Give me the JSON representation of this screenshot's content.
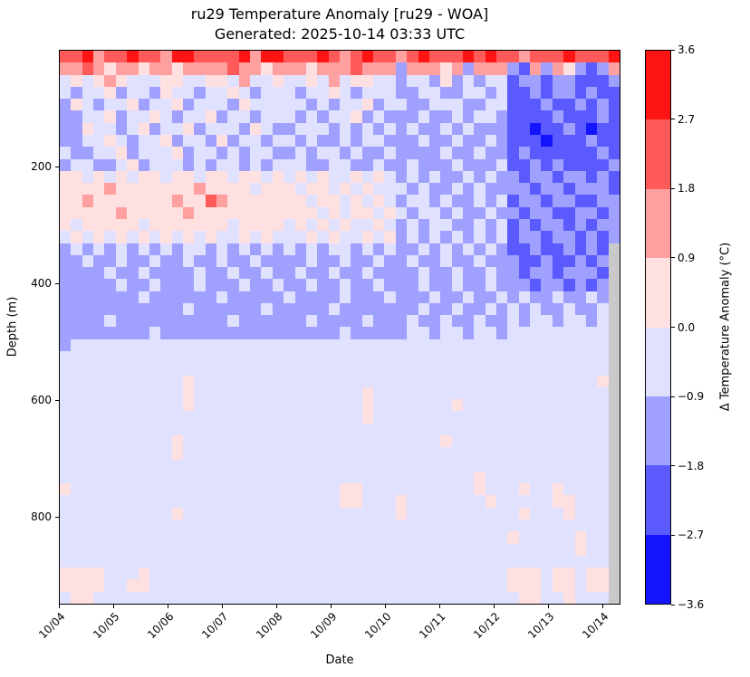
{
  "figure": {
    "background": "#ffffff"
  },
  "chart_data": {
    "type": "heatmap",
    "title": "ru29 Temperature Anomaly [ru29 - WOA]",
    "subtitle": "Generated: 2025-10-14 03:33 UTC",
    "xlabel": "Date",
    "ylabel": "Depth (m)",
    "colorbar_label": "Δ Temperature Anomaly (°C)",
    "x_tick_labels": [
      "10/04",
      "10/05",
      "10/06",
      "10/07",
      "10/08",
      "10/09",
      "10/10",
      "10/11",
      "10/12",
      "10/13",
      "10/14"
    ],
    "y_tick_labels": [
      "200",
      "400",
      "600",
      "800"
    ],
    "y_tick_values": [
      200,
      400,
      600,
      800
    ],
    "depth_range_m": [
      0,
      950
    ],
    "colorbar_tick_labels": [
      "3.6",
      "2.7",
      "1.8",
      "0.9",
      "0.0",
      "−0.9",
      "−1.8",
      "−2.7",
      "−3.6"
    ],
    "anomaly_levels_c": [
      -3.6,
      -2.7,
      -1.8,
      -0.9,
      0.0,
      0.9,
      1.8,
      2.7,
      3.6
    ],
    "band_colors": [
      "#1414ff",
      "#5a5aff",
      "#a0a0ff",
      "#e0e0ff",
      "#ffe0e0",
      "#ffa0a0",
      "#ff5a5a",
      "#ff1414"
    ],
    "band_value_ranges_c": [
      "-3.6 to -2.7",
      "-2.7 to -1.8",
      "-1.8 to -0.9",
      "-0.9 to 0.0",
      "0.0 to 0.9",
      "0.9 to 1.8",
      "1.8 to 2.7",
      "2.7 to 3.6"
    ],
    "nodata_color": "#c9c9c9",
    "grid_encoding": "rows[] top-to-bottom span depth 0→950 m; each character is one time cell left-to-right spanning 10/04→10/14; digits 0-7 index band_colors / band_value_ranges_c; 8 = no data",
    "rows": [
      "66756676657766667577666765676656766676766566676667",
      "55654554554555565545554555655525554525552152542125",
      "34345433344334435334334353443323324232331221221112",
      "32334233243323343233323343233322332233231121221211",
      "24323342334233324333332323342332233322331112112121",
      "22334233432334233233323233423222322323321111211121",
      "22433234233423332432233323232323223232221101121011",
      "22334323342332423323323223233222322322321110111211",
      "32233423334233232332232332322322223223221211111121",
      "23322342333232332323332233223223222322231121211112",
      "44343434434434434434343433434323232232322122122121",
      "44445444444454444344434434343332322323222212212221",
      "44544444445446544444443443434323323223231221221122",
      "44444544444544444444444343443432332322322122112212",
      "43444443444444434444343434334323233223231212212122",
      "34343434343434334343334343343423232323231221221212",
      "23232323232332323232323233232322323232321121121218",
      "22322322322322322322223223223223223223222112112128",
      "22223223222232232232232232232222322322322122122218",
      "22222322322232223223223223223222322322322212212128",
      "22222223222222322222322223222322232232232322322328",
      "22222222222322222232222232222222322322323232232238",
      "22223222222222232222223222232223223223223233233238",
      "22222222322222222222222223222223323323323333333338",
      "23333333333333333333333333333333333333333333333338",
      "33333333333333333333333333333333333333333333333338",
      "33333333333333333333333333333333333333333333333338",
      "33333333333433333333333333333333333333333333333348",
      "33333333333433333333333333343333333333333333333338",
      "33333333333433333333333333343333333433333333333338",
      "33333333333333333333333333343333333333333333333338",
      "33333333333333333333333333333333333333333333333338",
      "33333333334333333333333333333333334333333333333338",
      "33333333334333333333333333333333333333333333333338",
      "33333333333333333333333333333333333333333333333338",
      "33333333333333333333333333333333333334333333333338",
      "43333333333333333333333334433333333334333433433338",
      "33333333333333333333333334433343333333433333443338",
      "33333333334333333333333333333343333333333433343338",
      "33333333333333333333333333333333333333333333333338",
      "33333333333333333333333333333333333333334333334338",
      "33333333333333333333333333333333333333333333334338",
      "33333333333333333333333333333333333333333333333338",
      "44443334333333333333333333333333333333334443443448",
      "44443344333333333333333333333333333333334443443448",
      "34433333333333333333333333333333333333333443343338"
    ]
  }
}
